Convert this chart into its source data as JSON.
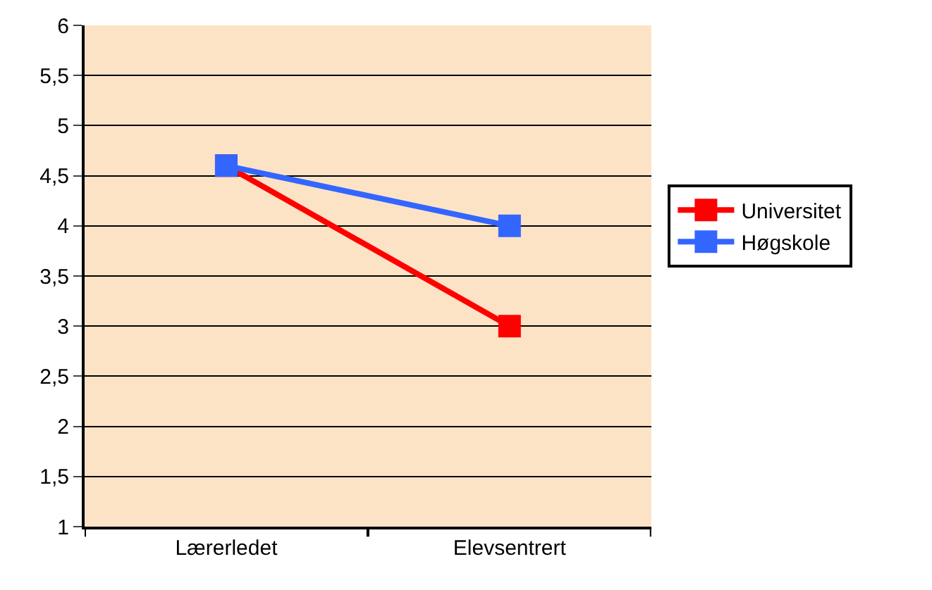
{
  "chart_data": {
    "type": "line",
    "categories": [
      "Lærerledet",
      "Elevsentrert"
    ],
    "series": [
      {
        "name": "Universitet",
        "color": "#ff0000",
        "values": [
          4.6,
          3.0
        ]
      },
      {
        "name": "Høgskole",
        "color": "#3366ff",
        "values": [
          4.6,
          4.0
        ]
      }
    ],
    "ylim": [
      1,
      6
    ],
    "yticks": [
      1,
      {
        "value": 1.5,
        "label": "1,5"
      },
      2,
      {
        "value": 2.5,
        "label": "2,5"
      },
      3,
      {
        "value": 3.5,
        "label": "3,5"
      },
      4,
      {
        "value": 4.5,
        "label": "4,5"
      },
      5,
      {
        "value": 5.5,
        "label": "5,5"
      },
      6
    ],
    "grid": "y",
    "legend": "right",
    "marker": "square",
    "line_style": "solid"
  }
}
